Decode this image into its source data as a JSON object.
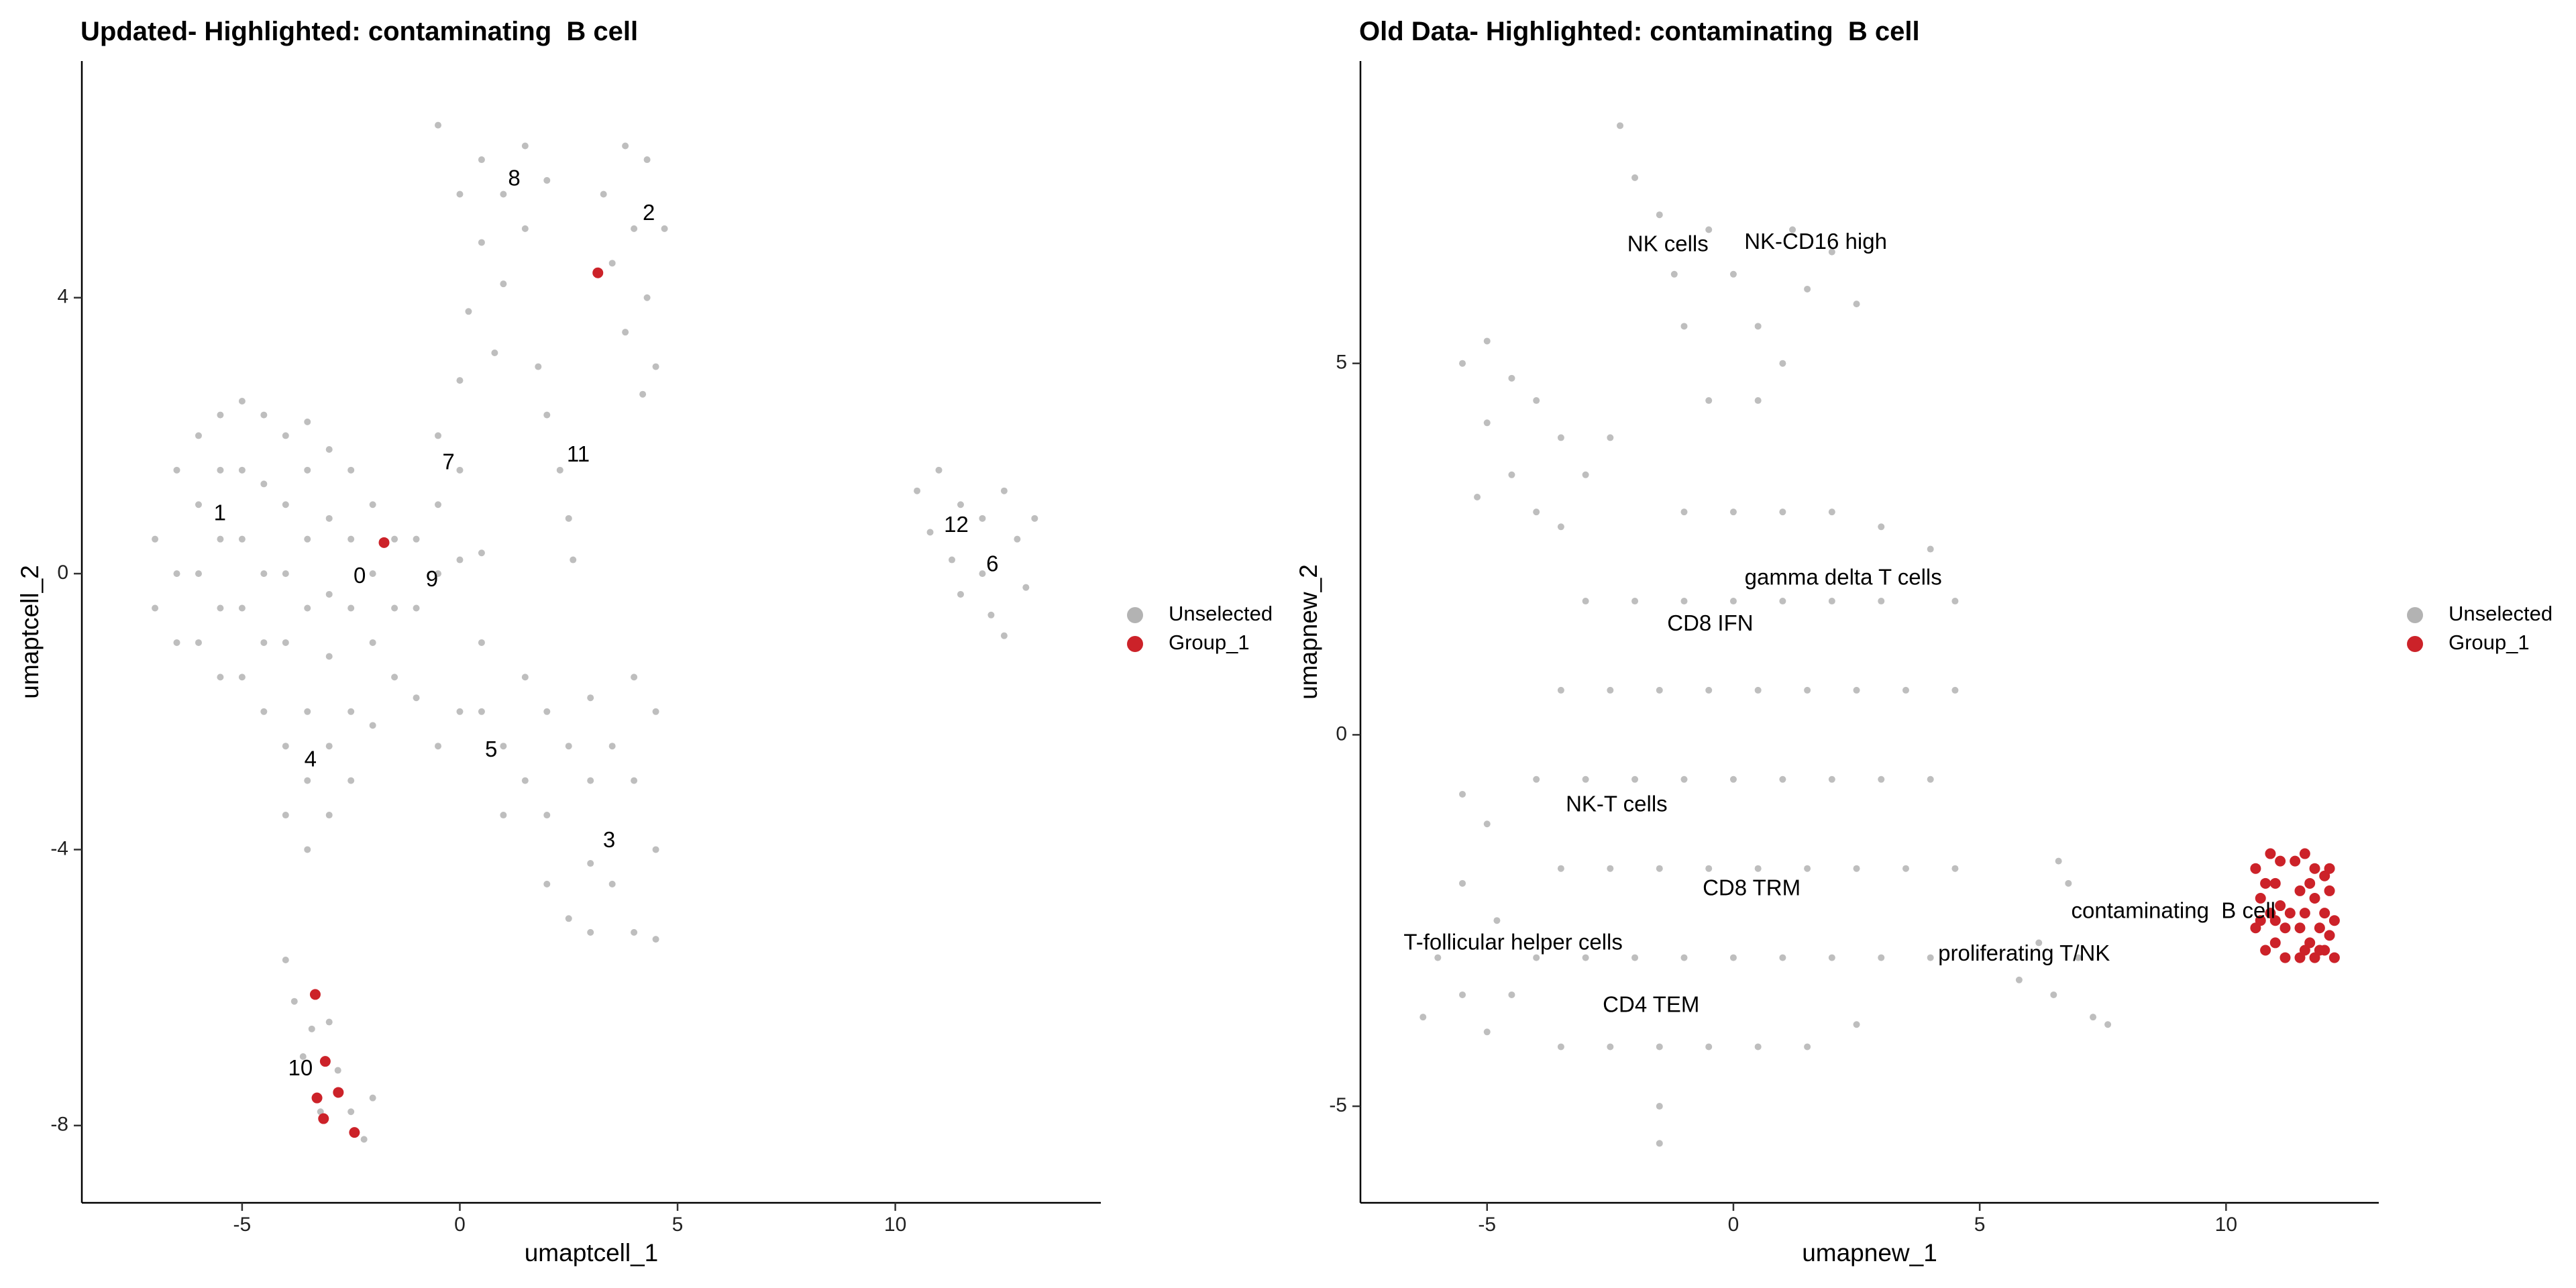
{
  "chart_data": [
    {
      "type": "scatter",
      "title": "Updated- Highlighted: contaminating  B cell",
      "x_label": "umaptcell_1",
      "y_label": "umaptcell_2",
      "xlim": [
        -8.68,
        14.72
      ],
      "ylim": [
        -9.12,
        7.43
      ],
      "xticks": [
        -5,
        0,
        5,
        10
      ],
      "yticks": [
        -8,
        -4,
        0,
        4
      ],
      "legend": "right",
      "series": [
        {
          "name": "Unselected",
          "color": "#b3b3b3",
          "x": [
            -7,
            -7,
            -6.5,
            -6.5,
            -6.5,
            -6,
            -6,
            -6,
            -6,
            -5.5,
            -5.5,
            -5.5,
            -5.5,
            -5.5,
            -5,
            -5,
            -5,
            -5,
            -5,
            -4.5,
            -4.5,
            -4.5,
            -4.5,
            -4,
            -4,
            -4,
            -4,
            -3.5,
            -3.5,
            -3.5,
            -3.5,
            -3,
            -3,
            -3,
            -3,
            -2.5,
            -2.5,
            -2.5,
            -2,
            -2,
            -2,
            -1.5,
            -1.5,
            -1.5,
            -4.5,
            -4,
            -4,
            -3.5,
            -3.5,
            -3.5,
            -3,
            -3,
            -2.5,
            -2.5,
            -2,
            -1,
            -1,
            -0.5,
            -0.5,
            -0.5,
            0,
            0,
            0,
            0.5,
            0.5,
            0.5,
            -1,
            -0.5,
            0,
            1,
            1,
            1.5,
            1.5,
            2,
            2,
            2,
            2.5,
            2.5,
            3,
            3,
            3,
            3.5,
            3.5,
            4,
            4,
            4,
            4.5,
            4.5,
            4.5,
            3,
            1.8,
            2,
            2.3,
            2.5,
            2.6,
            -0.5,
            0,
            0.5,
            0.5,
            1,
            1,
            1.5,
            1.5,
            2,
            0.2,
            0.8,
            3.3,
            3.5,
            3.8,
            3.8,
            4,
            4.3,
            4.3,
            4.5,
            4.7,
            4.2,
            10.5,
            10.8,
            11,
            11.3,
            11.5,
            12,
            12,
            12.2,
            12.5,
            12.8,
            13,
            13.2,
            11.5,
            12.5,
            -4,
            -3.8,
            -3.6,
            -3.4,
            -3.2,
            -3,
            -2.8,
            -2.5,
            -2.2,
            -2
          ],
          "y": [
            0.5,
            -0.5,
            1.5,
            0,
            -1,
            2,
            1,
            0,
            -1,
            2.3,
            1.5,
            0.5,
            -0.5,
            -1.5,
            2.5,
            1.5,
            0.5,
            -0.5,
            -1.5,
            2.3,
            1.3,
            0,
            -1,
            2,
            1,
            0,
            -1,
            2.2,
            1.5,
            0.5,
            -0.5,
            1.8,
            0.8,
            -0.3,
            -1.2,
            1.5,
            0.5,
            -0.5,
            1,
            0,
            -1,
            0.5,
            -0.5,
            -1.5,
            -2,
            -2.5,
            -3.5,
            -2,
            -3,
            -4,
            -2.5,
            -3.5,
            -2,
            -3,
            -2.2,
            0.5,
            -0.5,
            0,
            1,
            2,
            1.5,
            2.8,
            0.2,
            0.3,
            -1,
            -2,
            -1.8,
            -2.5,
            -2,
            -2.5,
            -3.5,
            -1.5,
            -3,
            -2,
            -3.5,
            -4.5,
            -2.5,
            -5,
            -1.8,
            -3,
            -4.2,
            -2.5,
            -4.5,
            -1.5,
            -3,
            -5.2,
            -2,
            -4,
            -5.3,
            -5.2,
            3,
            2.3,
            1.5,
            0.8,
            0.2,
            6.5,
            5.5,
            6,
            4.8,
            5.5,
            4.2,
            6.2,
            5,
            5.7,
            3.8,
            3.2,
            5.5,
            4.5,
            6.2,
            3.5,
            5,
            6,
            4,
            3,
            5,
            2.6,
            1.2,
            0.6,
            1.5,
            0.2,
            1,
            0.8,
            0,
            -0.6,
            1.2,
            0.5,
            -0.2,
            0.8,
            -0.3,
            -0.9,
            -5.6,
            -6.2,
            -7,
            -6.6,
            -7.8,
            -6.5,
            -7.2,
            -7.8,
            -8.2,
            -7.6
          ]
        },
        {
          "name": "Group_1",
          "color": "#cc2229",
          "x": [
            3.17,
            -1.74,
            -3.32,
            -3.09,
            -2.79,
            -3.28,
            -3.13,
            -2.42
          ],
          "y": [
            4.36,
            0.45,
            -6.1,
            -7.07,
            -7.52,
            -7.6,
            -7.9,
            -8.1
          ]
        }
      ],
      "annotations": [
        {
          "text": "8",
          "x": 1.25,
          "y": 5.71
        },
        {
          "text": "2",
          "x": 4.34,
          "y": 5.21
        },
        {
          "text": "7",
          "x": -0.26,
          "y": 1.6
        },
        {
          "text": "11",
          "x": 2.72,
          "y": 1.71
        },
        {
          "text": "1",
          "x": -5.51,
          "y": 0.86
        },
        {
          "text": "12",
          "x": 11.4,
          "y": 0.69
        },
        {
          "text": "0",
          "x": -2.3,
          "y": -0.05
        },
        {
          "text": "9",
          "x": -0.64,
          "y": -0.1
        },
        {
          "text": "6",
          "x": 12.23,
          "y": 0.12
        },
        {
          "text": "4",
          "x": -3.43,
          "y": -2.71
        },
        {
          "text": "5",
          "x": 0.72,
          "y": -2.57
        },
        {
          "text": "3",
          "x": 3.43,
          "y": -3.88
        },
        {
          "text": "10",
          "x": -3.66,
          "y": -7.19
        }
      ]
    },
    {
      "type": "scatter",
      "title": "Old Data- Highlighted: contaminating  B cell",
      "x_label": "umapnew_1",
      "y_label": "umapnew_2",
      "xlim": [
        -7.57,
        13.1
      ],
      "ylim": [
        -6.3,
        9.07
      ],
      "xticks": [
        -5,
        0,
        5,
        10
      ],
      "yticks": [
        -5,
        0,
        5
      ],
      "legend": "right",
      "series": [
        {
          "name": "Unselected",
          "color": "#b3b3b3",
          "x": [
            -2.3,
            -2,
            -1.5,
            -1.2,
            -1,
            -0.5,
            0,
            0.5,
            1.2,
            1.5,
            2,
            2.5,
            -0.5,
            0.5,
            1,
            -5.5,
            -5,
            -5,
            -4.5,
            -4.5,
            -4,
            -4,
            -3.5,
            -3.5,
            -3,
            -5.2,
            -2.5,
            -1,
            0,
            1,
            2,
            3,
            4,
            -3,
            -2,
            -1,
            0,
            1,
            2,
            3,
            4.5,
            -3.5,
            -2.5,
            -1.5,
            -0.5,
            0.5,
            1.5,
            2.5,
            3.5,
            4.5,
            -4,
            -3,
            -2,
            -1,
            0,
            1,
            2,
            3,
            4,
            -3.5,
            -2.5,
            -1.5,
            -0.5,
            0.5,
            1.5,
            2.5,
            3.5,
            4.5,
            -4,
            -3,
            -2,
            -1,
            0,
            1,
            2,
            3,
            4,
            -3.5,
            -2.5,
            -1.5,
            -0.5,
            0.5,
            1.5,
            2.5,
            -1.5,
            -1.5,
            -5.5,
            -5.5,
            -6,
            -6.3,
            -5.5,
            -5,
            -4.8,
            -5,
            -4.5,
            5.8,
            6.2,
            6.5,
            6.8,
            7,
            7.3,
            7.6,
            6.6
          ],
          "y": [
            8.2,
            7.5,
            7,
            6.2,
            5.5,
            6.8,
            6.2,
            5.5,
            6.8,
            6,
            6.5,
            5.8,
            4.5,
            4.5,
            5,
            5,
            5.3,
            4.2,
            4.8,
            3.5,
            4.5,
            3,
            4,
            2.8,
            3.5,
            3.2,
            4,
            3,
            3,
            3,
            3,
            2.8,
            2.5,
            1.8,
            1.8,
            1.8,
            1.8,
            1.8,
            1.8,
            1.8,
            1.8,
            0.6,
            0.6,
            0.6,
            0.6,
            0.6,
            0.6,
            0.6,
            0.6,
            0.6,
            -0.6,
            -0.6,
            -0.6,
            -0.6,
            -0.6,
            -0.6,
            -0.6,
            -0.6,
            -0.6,
            -1.8,
            -1.8,
            -1.8,
            -1.8,
            -1.8,
            -1.8,
            -1.8,
            -1.8,
            -1.8,
            -3,
            -3,
            -3,
            -3,
            -3,
            -3,
            -3,
            -3,
            -3,
            -4.2,
            -4.2,
            -4.2,
            -4.2,
            -4.2,
            -4.2,
            -3.9,
            -5,
            -5.5,
            -0.8,
            -2,
            -3,
            -3.8,
            -3.5,
            -4,
            -2.5,
            -1.2,
            -3.5,
            -3.3,
            -2.8,
            -3.5,
            -2,
            -3,
            -3.8,
            -3.9,
            -1.7
          ]
        },
        {
          "name": "Group_1",
          "color": "#cc2229",
          "x": [
            10.6,
            10.7,
            10.6,
            10.8,
            10.9,
            10.9,
            11,
            11,
            11.1,
            11.1,
            11.2,
            11.2,
            10.7,
            10.8,
            11,
            11.4,
            11.5,
            11.5,
            11.5,
            11.6,
            11.6,
            11.7,
            11.8,
            11.8,
            11.8,
            11.9,
            12,
            12,
            12,
            12.1,
            12.1,
            12.2,
            12.2,
            11.7,
            11.9,
            11.3,
            12.1,
            11.6
          ],
          "y": [
            -1.8,
            -2.2,
            -2.6,
            -2.9,
            -1.6,
            -2.4,
            -2,
            -2.8,
            -1.7,
            -2.3,
            -2.6,
            -3,
            -2.5,
            -2,
            -2.5,
            -1.7,
            -2.1,
            -2.6,
            -3,
            -1.6,
            -2.4,
            -2.8,
            -1.8,
            -2.2,
            -3,
            -2.6,
            -1.9,
            -2.4,
            -2.9,
            -2.1,
            -2.7,
            -2.5,
            -3,
            -2,
            -2.9,
            -2.4,
            -1.8,
            -2.9
          ]
        }
      ],
      "annotations": [
        {
          "text": "NK cells",
          "x": -1.33,
          "y": 6.59
        },
        {
          "text": "NK-CD16 high",
          "x": 1.67,
          "y": 6.62
        },
        {
          "text": "gamma delta T cells",
          "x": 2.23,
          "y": 2.1
        },
        {
          "text": "CD8 IFN",
          "x": -0.47,
          "y": 1.48
        },
        {
          "text": "NK-T cells",
          "x": -2.37,
          "y": -0.95
        },
        {
          "text": "CD8 TRM",
          "x": 0.37,
          "y": -2.08
        },
        {
          "text": "contaminating  B cell",
          "x": 8.93,
          "y": -2.39
        },
        {
          "text": "T-follicular helper cells",
          "x": -4.47,
          "y": -2.81
        },
        {
          "text": "proliferating T/NK",
          "x": 5.9,
          "y": -2.96
        },
        {
          "text": "CD4 TEM",
          "x": -1.67,
          "y": -3.65
        }
      ]
    }
  ]
}
